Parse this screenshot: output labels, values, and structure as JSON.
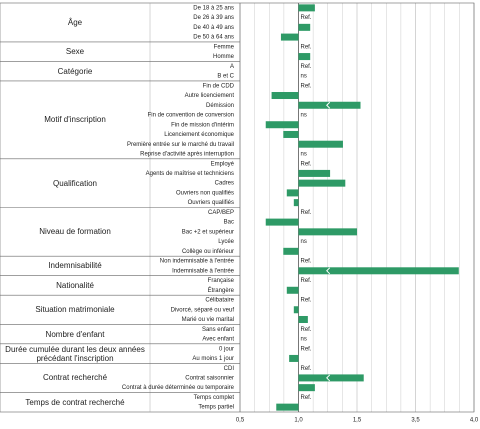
{
  "chart_data": {
    "type": "bar",
    "color": "#2e9a66",
    "base": 1,
    "xlim": [
      0.5,
      4
    ],
    "xticks": [
      {
        "value": 0.5,
        "label": "0,5"
      },
      {
        "value": 1,
        "label": "1,0"
      },
      {
        "value": 1.5,
        "label": "1,5"
      },
      {
        "value": 3.5,
        "label": "3,5"
      },
      {
        "value": 4,
        "label": "4,0"
      }
    ],
    "axis_break": true,
    "groups": [
      {
        "label": "Âge",
        "categories": [
          "De 18 à 25 ans",
          "De 26 à 39 ans",
          "De 40 à 49 ans",
          "De 50 à 64 ans"
        ],
        "values": [
          1.14,
          null,
          1.1,
          0.85
        ],
        "value_labels": [
          null,
          "Ref.",
          null,
          null
        ]
      },
      {
        "label": "Sexe",
        "categories": [
          "Femme",
          "Homme"
        ],
        "values": [
          null,
          1.1
        ],
        "value_labels": [
          "Ref.",
          null
        ]
      },
      {
        "label": "Catégorie",
        "categories": [
          "A",
          "B et C"
        ],
        "values": [
          null,
          null
        ],
        "value_labels": [
          "Ref.",
          "ns"
        ]
      },
      {
        "label": "Motif d'inscription",
        "categories": [
          "Fin de CDD",
          "Autre licenciement",
          "Démission",
          "Fin de convention de conversion",
          "Fin de mission d'intérim",
          "Licenciement économique",
          "Première entrée sur le marché du travail",
          "Reprise d'activité après interruption"
        ],
        "values": [
          null,
          0.77,
          1.62,
          null,
          0.72,
          0.87,
          1.38,
          null
        ],
        "value_labels": [
          "Ref.",
          null,
          null,
          "ns",
          null,
          null,
          null,
          "ns"
        ]
      },
      {
        "label": "Qualification",
        "categories": [
          "Employé",
          "Agents de maîtrise et techniciens",
          "Cadres",
          "Ouvriers non qualifiés",
          "Ouvriers qualifiés"
        ],
        "values": [
          null,
          1.27,
          1.4,
          0.9,
          0.96
        ],
        "value_labels": [
          "Ref.",
          null,
          null,
          null,
          null
        ]
      },
      {
        "label": "Niveau de formation",
        "categories": [
          "CAP/BEP",
          "Bac",
          "Bac +2 et supérieur",
          "Lycée",
          "Collège ou inférieur"
        ],
        "values": [
          null,
          0.72,
          1.5,
          null,
          0.87
        ],
        "value_labels": [
          "Ref.",
          null,
          null,
          "ns",
          null
        ]
      },
      {
        "label": "Indemnisabilité",
        "categories": [
          "Non indemnisable à l'entrée",
          "Indemnisable à l'entrée"
        ],
        "values": [
          null,
          3.87
        ],
        "value_labels": [
          "Ref.",
          null
        ]
      },
      {
        "label": "Nationalité",
        "categories": [
          "Française",
          "Étrangère"
        ],
        "values": [
          null,
          0.9
        ],
        "value_labels": [
          "Ref.",
          null
        ]
      },
      {
        "label": "Situation matrimoniale",
        "categories": [
          "Célibataire",
          "Divorcé, séparé ou veuf",
          "Marié ou vie marital"
        ],
        "values": [
          null,
          0.96,
          1.08
        ],
        "value_labels": [
          "Ref.",
          null,
          null
        ]
      },
      {
        "label": "Nombre d'enfant",
        "categories": [
          "Sans enfant",
          "Avec enfant"
        ],
        "values": [
          null,
          null
        ],
        "value_labels": [
          "Ref.",
          "ns"
        ]
      },
      {
        "label": "Durée cumulée durant les deux années précédant l'inscription",
        "categories": [
          "0 jour",
          "Au moins 1 jour"
        ],
        "values": [
          null,
          0.92
        ],
        "value_labels": [
          "Ref.",
          null
        ]
      },
      {
        "label": "Contrat recherché",
        "categories": [
          "CDI",
          "Contrat saisonnier",
          "Contrat à durée déterminée ou temporaire"
        ],
        "values": [
          null,
          1.73,
          1.14
        ],
        "value_labels": [
          "Ref.",
          null,
          null
        ]
      },
      {
        "label": "Temps de contrat recherché",
        "categories": [
          "Temps complet",
          "Temps partiel"
        ],
        "values": [
          null,
          0.81
        ],
        "value_labels": [
          "Ref.",
          null
        ]
      }
    ]
  }
}
